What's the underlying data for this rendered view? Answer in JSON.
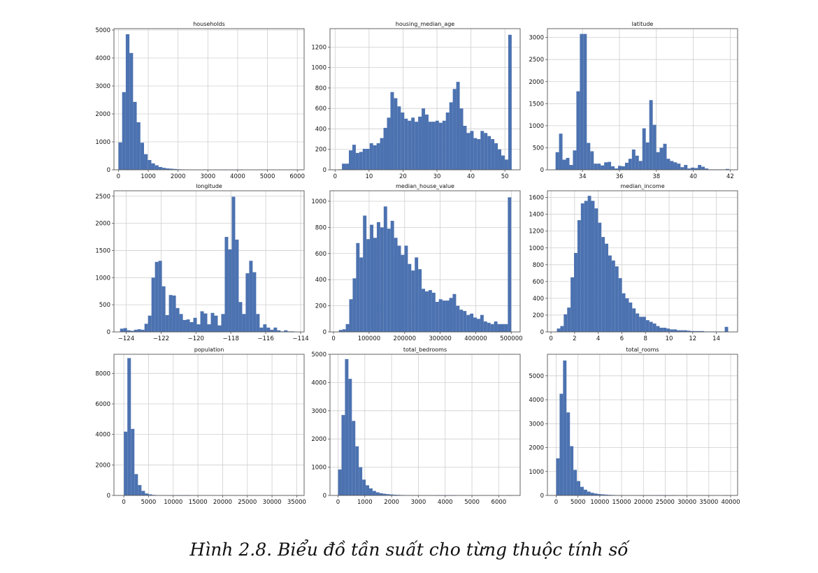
{
  "colors": {
    "bar": "#4c72b0",
    "grid": "#cfcfcf",
    "frame": "#555555",
    "text": "#111111"
  },
  "caption": "Hình 2.8. Biểu đồ tần suất cho từng thuộc tính số",
  "chart_data": [
    {
      "type": "bar",
      "title": "households",
      "xlabel": "",
      "ylabel": "",
      "grid": true,
      "xlim": [
        -150,
        6230
      ],
      "ylim": [
        0,
        5050
      ],
      "xticks": [
        0,
        1000,
        2000,
        3000,
        4000,
        5000,
        6000
      ],
      "xtick_labels": [
        "0",
        "1000",
        "2000",
        "3000",
        "4000",
        "5000",
        "6000"
      ],
      "yticks": [
        0,
        1000,
        2000,
        3000,
        4000,
        5000
      ],
      "ytick_labels": [
        "0",
        "1000",
        "2000",
        "3000",
        "4000",
        "5000"
      ],
      "bin_start": 1,
      "bin_width": 122.5,
      "values": [
        980,
        2780,
        4850,
        4180,
        2430,
        1700,
        970,
        560,
        350,
        230,
        160,
        100,
        70,
        50,
        40,
        30,
        20,
        15,
        10,
        8,
        6,
        5,
        4,
        3,
        3,
        2,
        2,
        2,
        1,
        1,
        1,
        1,
        1,
        1,
        0,
        0,
        0,
        0,
        0,
        0,
        0,
        0,
        0,
        0,
        0,
        0,
        0,
        0,
        0,
        1
      ]
    },
    {
      "type": "bar",
      "title": "housing_median_age",
      "xlabel": "",
      "ylabel": "",
      "grid": true,
      "xlim": [
        -1.5,
        54.5
      ],
      "ylim": [
        0,
        1380
      ],
      "xticks": [
        0,
        10,
        20,
        30,
        40,
        50
      ],
      "xtick_labels": [
        "0",
        "10",
        "20",
        "30",
        "40",
        "50"
      ],
      "yticks": [
        0,
        200,
        400,
        600,
        800,
        1000,
        1200
      ],
      "ytick_labels": [
        "0",
        "200",
        "400",
        "600",
        "800",
        "1000",
        "1200"
      ],
      "bin_start": 1,
      "bin_width": 1.02,
      "values": [
        4,
        60,
        60,
        190,
        245,
        165,
        175,
        205,
        205,
        260,
        240,
        260,
        310,
        410,
        510,
        760,
        700,
        620,
        560,
        500,
        480,
        510,
        470,
        520,
        600,
        540,
        470,
        470,
        480,
        460,
        480,
        560,
        660,
        790,
        860,
        600,
        430,
        360,
        380,
        310,
        300,
        380,
        360,
        330,
        300,
        260,
        200,
        140,
        100,
        1320
      ]
    },
    {
      "type": "bar",
      "title": "latitude",
      "xlabel": "",
      "ylabel": "",
      "grid": true,
      "xlim": [
        32.1,
        42.4
      ],
      "ylim": [
        0,
        3200
      ],
      "xticks": [
        34,
        36,
        38,
        40,
        42
      ],
      "xtick_labels": [
        "34",
        "36",
        "38",
        "40",
        "42"
      ],
      "yticks": [
        0,
        500,
        1000,
        1500,
        2000,
        2500,
        3000
      ],
      "ytick_labels": [
        "0",
        "500",
        "1000",
        "1500",
        "2000",
        "2500",
        "3000"
      ],
      "bin_start": 32.54,
      "bin_width": 0.188,
      "values": [
        400,
        820,
        230,
        270,
        110,
        440,
        1780,
        3080,
        3080,
        610,
        420,
        140,
        140,
        100,
        170,
        180,
        80,
        30,
        90,
        80,
        160,
        250,
        460,
        320,
        200,
        940,
        620,
        1580,
        1020,
        400,
        500,
        590,
        250,
        200,
        170,
        140,
        60,
        110,
        30,
        50,
        40,
        110,
        70,
        30,
        10,
        10,
        10,
        10,
        10,
        20
      ]
    },
    {
      "type": "bar",
      "title": "longitude",
      "xlabel": "",
      "ylabel": "",
      "grid": true,
      "xlim": [
        -124.7,
        -113.8
      ],
      "ylim": [
        0,
        2600
      ],
      "xticks": [
        -124,
        -122,
        -120,
        -118,
        -116,
        -114
      ],
      "xtick_labels": [
        "−124",
        "−122",
        "−120",
        "−118",
        "−116",
        "−114"
      ],
      "yticks": [
        0,
        500,
        1000,
        1500,
        2000,
        2500
      ],
      "ytick_labels": [
        "0",
        "500",
        "1000",
        "1500",
        "2000",
        "2500"
      ],
      "bin_start": -124.35,
      "bin_width": 0.2,
      "values": [
        60,
        70,
        30,
        20,
        40,
        50,
        40,
        150,
        300,
        1000,
        1290,
        1310,
        840,
        310,
        680,
        670,
        440,
        330,
        220,
        230,
        180,
        260,
        140,
        380,
        340,
        140,
        350,
        300,
        120,
        330,
        1750,
        1520,
        2490,
        1700,
        550,
        330,
        1080,
        1310,
        1100,
        330,
        80,
        140,
        80,
        40,
        80,
        30,
        10,
        30,
        10,
        10
      ]
    },
    {
      "type": "bar",
      "title": "median_house_value",
      "xlabel": "",
      "ylabel": "",
      "grid": true,
      "xlim": [
        -10000,
        525000
      ],
      "ylim": [
        0,
        1080
      ],
      "xticks": [
        0,
        100000,
        200000,
        300000,
        400000,
        500000
      ],
      "xtick_labels": [
        "0",
        "100000",
        "200000",
        "300000",
        "400000",
        "500000"
      ],
      "yticks": [
        0,
        200,
        400,
        600,
        800,
        1000
      ],
      "ytick_labels": [
        "0",
        "200",
        "400",
        "600",
        "800",
        "1000"
      ],
      "bin_start": 14999,
      "bin_width": 9700,
      "values": [
        15,
        20,
        60,
        250,
        410,
        680,
        570,
        890,
        710,
        820,
        720,
        840,
        800,
        960,
        790,
        850,
        720,
        660,
        590,
        660,
        520,
        470,
        570,
        480,
        330,
        310,
        320,
        300,
        230,
        250,
        240,
        240,
        260,
        290,
        200,
        170,
        160,
        130,
        140,
        110,
        100,
        130,
        80,
        70,
        60,
        80,
        60,
        60,
        60,
        1030
      ]
    },
    {
      "type": "bar",
      "title": "median_income",
      "xlabel": "",
      "ylabel": "",
      "grid": true,
      "xlim": [
        -0.3,
        15.8
      ],
      "ylim": [
        0,
        1680
      ],
      "xticks": [
        0,
        2,
        4,
        6,
        8,
        10,
        12,
        14
      ],
      "xtick_labels": [
        "0",
        "2",
        "4",
        "6",
        "8",
        "10",
        "12",
        "14"
      ],
      "bin_start": 0.5,
      "bin_width": 0.29,
      "yticks": [
        0,
        200,
        400,
        600,
        800,
        1000,
        1200,
        1400,
        1600
      ],
      "ytick_labels": [
        "0",
        "200",
        "400",
        "600",
        "800",
        "1000",
        "1200",
        "1400",
        "1600"
      ],
      "values": [
        40,
        70,
        210,
        290,
        650,
        940,
        1330,
        1530,
        1560,
        1620,
        1560,
        1470,
        1300,
        1130,
        1050,
        910,
        850,
        780,
        640,
        460,
        400,
        350,
        280,
        220,
        180,
        180,
        140,
        120,
        100,
        70,
        50,
        50,
        40,
        30,
        30,
        20,
        20,
        20,
        15,
        10,
        10,
        10,
        10,
        5,
        5,
        5,
        5,
        5,
        5,
        60
      ]
    },
    {
      "type": "bar",
      "title": "population",
      "xlabel": "",
      "ylabel": "",
      "grid": true,
      "xlim": [
        -2000,
        36500
      ],
      "ylim": [
        0,
        9250
      ],
      "xticks": [
        0,
        5000,
        10000,
        15000,
        20000,
        25000,
        30000,
        35000
      ],
      "xtick_labels": [
        "0",
        "5000",
        "10000",
        "15000",
        "20000",
        "25000",
        "30000",
        "35000"
      ],
      "yticks": [
        0,
        2000,
        4000,
        6000,
        8000
      ],
      "ytick_labels": [
        "0",
        "2000",
        "4000",
        "6000",
        "8000"
      ],
      "bin_start": 3,
      "bin_width": 713,
      "values": [
        4180,
        9000,
        4360,
        1400,
        680,
        300,
        130,
        70,
        35,
        15,
        10,
        5,
        5,
        3,
        2,
        1,
        1,
        1,
        1,
        0,
        0,
        0,
        0,
        0,
        0,
        0,
        0,
        0,
        0,
        0,
        0,
        0,
        0,
        0,
        0,
        0,
        0,
        0,
        0,
        0,
        0,
        0,
        0,
        0,
        0,
        0,
        0,
        0,
        0,
        1
      ]
    },
    {
      "type": "bar",
      "title": "total_bedrooms",
      "xlabel": "",
      "ylabel": "",
      "grid": true,
      "xlim": [
        -300,
        6800
      ],
      "ylim": [
        0,
        5000
      ],
      "xticks": [
        0,
        1000,
        2000,
        3000,
        4000,
        5000,
        6000
      ],
      "xtick_labels": [
        "0",
        "1000",
        "2000",
        "3000",
        "4000",
        "5000",
        "6000"
      ],
      "yticks": [
        0,
        1000,
        2000,
        3000,
        4000,
        5000
      ],
      "ytick_labels": [
        "0",
        "1000",
        "2000",
        "3000",
        "4000",
        "5000"
      ],
      "bin_start": 1,
      "bin_width": 129,
      "values": [
        920,
        2850,
        4830,
        4130,
        2640,
        1740,
        1000,
        560,
        360,
        250,
        160,
        110,
        80,
        60,
        45,
        35,
        25,
        20,
        15,
        10,
        8,
        6,
        5,
        4,
        3,
        3,
        2,
        2,
        1,
        1,
        1,
        1,
        1,
        1,
        0,
        0,
        0,
        0,
        0,
        0,
        0,
        0,
        0,
        0,
        0,
        0,
        0,
        0,
        0,
        1
      ]
    },
    {
      "type": "bar",
      "title": "total_rooms",
      "xlabel": "",
      "ylabel": "",
      "grid": true,
      "xlim": [
        -2000,
        41600
      ],
      "ylim": [
        0,
        5900
      ],
      "xticks": [
        0,
        5000,
        10000,
        15000,
        20000,
        25000,
        30000,
        35000,
        40000
      ],
      "xtick_labels": [
        "0",
        "5000",
        "10000",
        "15000",
        "20000",
        "25000",
        "30000",
        "35000",
        "40000"
      ],
      "yticks": [
        0,
        1000,
        2000,
        3000,
        4000,
        5000
      ],
      "ytick_labels": [
        "0",
        "1000",
        "2000",
        "3000",
        "4000",
        "5000"
      ],
      "bin_start": 2,
      "bin_width": 790,
      "values": [
        1550,
        4250,
        5640,
        3470,
        2060,
        1070,
        600,
        360,
        240,
        160,
        110,
        80,
        60,
        45,
        35,
        25,
        20,
        15,
        12,
        10,
        8,
        6,
        5,
        4,
        3,
        3,
        2,
        2,
        1,
        1,
        1,
        1,
        1,
        1,
        1,
        0,
        0,
        0,
        0,
        0,
        0,
        0,
        0,
        0,
        0,
        0,
        0,
        0,
        0,
        1
      ]
    }
  ]
}
